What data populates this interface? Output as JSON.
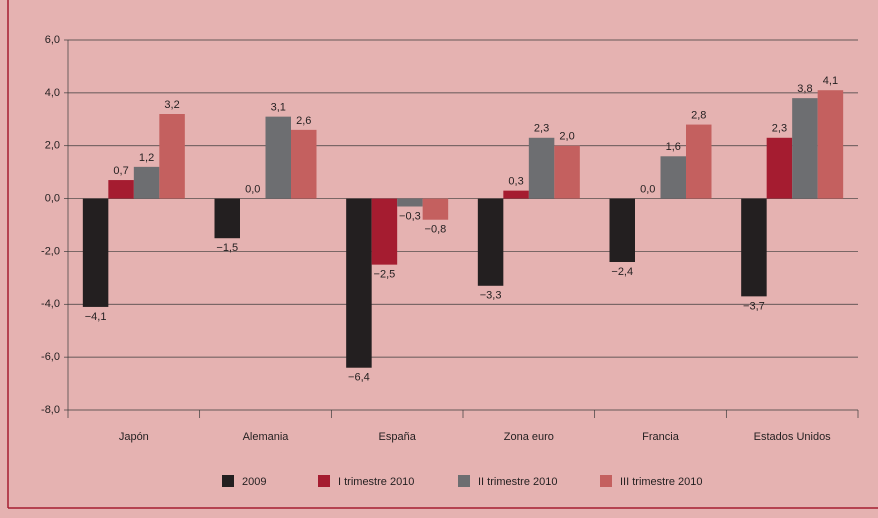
{
  "chart_data": {
    "type": "bar",
    "categories": [
      "Japón",
      "Alemania",
      "España",
      "Zona euro",
      "Francia",
      "Estados Unidos"
    ],
    "series": [
      {
        "name": "2009",
        "color": "#231f20",
        "values": [
          -4.1,
          -1.5,
          -6.4,
          -3.3,
          -2.4,
          -3.7
        ],
        "value_labels": [
          "−4,1",
          "−1,5",
          "−6,4",
          "−3,3",
          "−2,4",
          "−3,7"
        ]
      },
      {
        "name": "I trimestre 2010",
        "color": "#a51c30",
        "values": [
          0.7,
          0.0,
          -2.5,
          0.3,
          0.0,
          2.3
        ],
        "value_labels": [
          "0,7",
          "0,0",
          "−2,5",
          "0,3",
          "0,0",
          "2,3"
        ]
      },
      {
        "name": "II trimestre 2010",
        "color": "#6d6e71",
        "values": [
          1.2,
          3.1,
          -0.3,
          2.3,
          1.6,
          3.8
        ],
        "value_labels": [
          "1,2",
          "3,1",
          "−0,3",
          "2,3",
          "1,6",
          "3,8"
        ]
      },
      {
        "name": "III trimestre 2010",
        "color": "#c4605f",
        "values": [
          3.2,
          2.6,
          -0.8,
          2.0,
          2.8,
          4.1
        ],
        "value_labels": [
          "3,2",
          "2,6",
          "−0,8",
          "2,0",
          "2,8",
          "4,1"
        ]
      }
    ],
    "ylim": [
      -8,
      6
    ],
    "yticks": [
      {
        "value": -8,
        "label": "-8,0"
      },
      {
        "value": -6,
        "label": "-6,0"
      },
      {
        "value": -4,
        "label": "-4,0"
      },
      {
        "value": -2,
        "label": "-2,0"
      },
      {
        "value": 0,
        "label": "0,0"
      },
      {
        "value": 2,
        "label": "2,0"
      },
      {
        "value": 4,
        "label": "4,0"
      },
      {
        "value": 6,
        "label": "6,0"
      }
    ],
    "grid": true,
    "legend": "bottom"
  }
}
